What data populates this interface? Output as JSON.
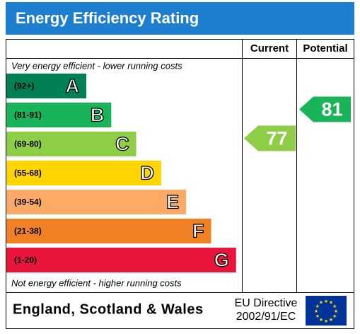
{
  "title": "Energy Efficiency Rating",
  "headers": {
    "current": "Current",
    "potential": "Potential"
  },
  "top_note": "Very energy efficient - lower running costs",
  "bottom_note": "Not energy efficient - higher running costs",
  "bands": [
    {
      "range": "(92+)",
      "letter": "A",
      "color": "#008054"
    },
    {
      "range": "(81-91)",
      "letter": "B",
      "color": "#19b459"
    },
    {
      "range": "(69-80)",
      "letter": "C",
      "color": "#8dce46"
    },
    {
      "range": "(55-68)",
      "letter": "D",
      "color": "#ffd500"
    },
    {
      "range": "(39-54)",
      "letter": "E",
      "color": "#fcaa65"
    },
    {
      "range": "(21-38)",
      "letter": "F",
      "color": "#ef8023"
    },
    {
      "range": "(1-20)",
      "letter": "G",
      "color": "#e9153b"
    }
  ],
  "current": 77,
  "potential": 81,
  "footer": {
    "region": "England, Scotland & Wales",
    "directive_line1": "EU Directive",
    "directive_line2": "2002/91/EC"
  }
}
